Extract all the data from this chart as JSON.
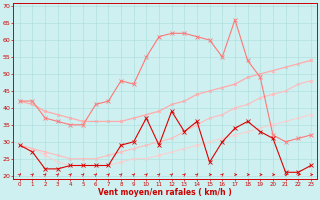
{
  "x": [
    0,
    1,
    2,
    3,
    4,
    5,
    6,
    7,
    8,
    9,
    10,
    11,
    12,
    13,
    14,
    15,
    16,
    17,
    18,
    19,
    20,
    21,
    22,
    23
  ],
  "series": [
    {
      "name": "dark_red_volatile",
      "color": "#dd0000",
      "linewidth": 0.8,
      "marker": "x",
      "markersize": 2.5,
      "values": [
        29,
        27,
        22,
        22,
        23,
        23,
        23,
        23,
        29,
        30,
        37,
        29,
        39,
        33,
        36,
        24,
        30,
        34,
        36,
        33,
        31,
        21,
        21,
        23
      ]
    },
    {
      "name": "medium_red_upper",
      "color": "#ff7777",
      "linewidth": 0.8,
      "marker": "x",
      "markersize": 2.5,
      "values": [
        42,
        42,
        37,
        36,
        35,
        35,
        41,
        42,
        48,
        47,
        55,
        61,
        62,
        62,
        61,
        60,
        55,
        66,
        54,
        49,
        32,
        30,
        31,
        32
      ]
    },
    {
      "name": "light_pink_slope_high",
      "color": "#ffaaaa",
      "linewidth": 0.9,
      "marker": "x",
      "markersize": 2,
      "values": [
        42,
        41,
        39,
        38,
        37,
        36,
        36,
        36,
        36,
        37,
        38,
        39,
        41,
        42,
        44,
        45,
        46,
        47,
        49,
        50,
        51,
        52,
        53,
        54
      ]
    },
    {
      "name": "light_pink_slope_mid",
      "color": "#ffbbbb",
      "linewidth": 0.8,
      "marker": "x",
      "markersize": 2,
      "values": [
        29,
        28,
        27,
        26,
        25,
        25,
        25,
        26,
        27,
        28,
        29,
        30,
        31,
        33,
        35,
        37,
        38,
        40,
        41,
        43,
        44,
        45,
        47,
        48
      ]
    },
    {
      "name": "light_pink_slope_low",
      "color": "#ffcccc",
      "linewidth": 0.7,
      "marker": "x",
      "markersize": 2,
      "values": [
        29,
        28,
        26,
        24,
        23,
        23,
        23,
        23,
        24,
        25,
        25,
        26,
        27,
        28,
        29,
        30,
        31,
        32,
        33,
        34,
        35,
        36,
        37,
        38
      ]
    }
  ],
  "arrow_angles": [
    45,
    45,
    45,
    45,
    45,
    45,
    45,
    45,
    45,
    45,
    45,
    45,
    45,
    45,
    45,
    0,
    45,
    0,
    0,
    0,
    0,
    0,
    0,
    0
  ],
  "ylim": [
    19,
    71
  ],
  "yticks": [
    20,
    25,
    30,
    35,
    40,
    45,
    50,
    55,
    60,
    65,
    70
  ],
  "xticks": [
    0,
    1,
    2,
    3,
    4,
    5,
    6,
    7,
    8,
    9,
    10,
    11,
    12,
    13,
    14,
    15,
    16,
    17,
    18,
    19,
    20,
    21,
    22,
    23
  ],
  "xlabel": "Vent moyen/en rafales ( km/h )",
  "background_color": "#cff0f0",
  "grid_color": "#aadddd",
  "spine_color": "#cc0000",
  "text_color": "#cc0000",
  "xlabel_color": "#cc0000",
  "arrow_color": "#dd0000"
}
